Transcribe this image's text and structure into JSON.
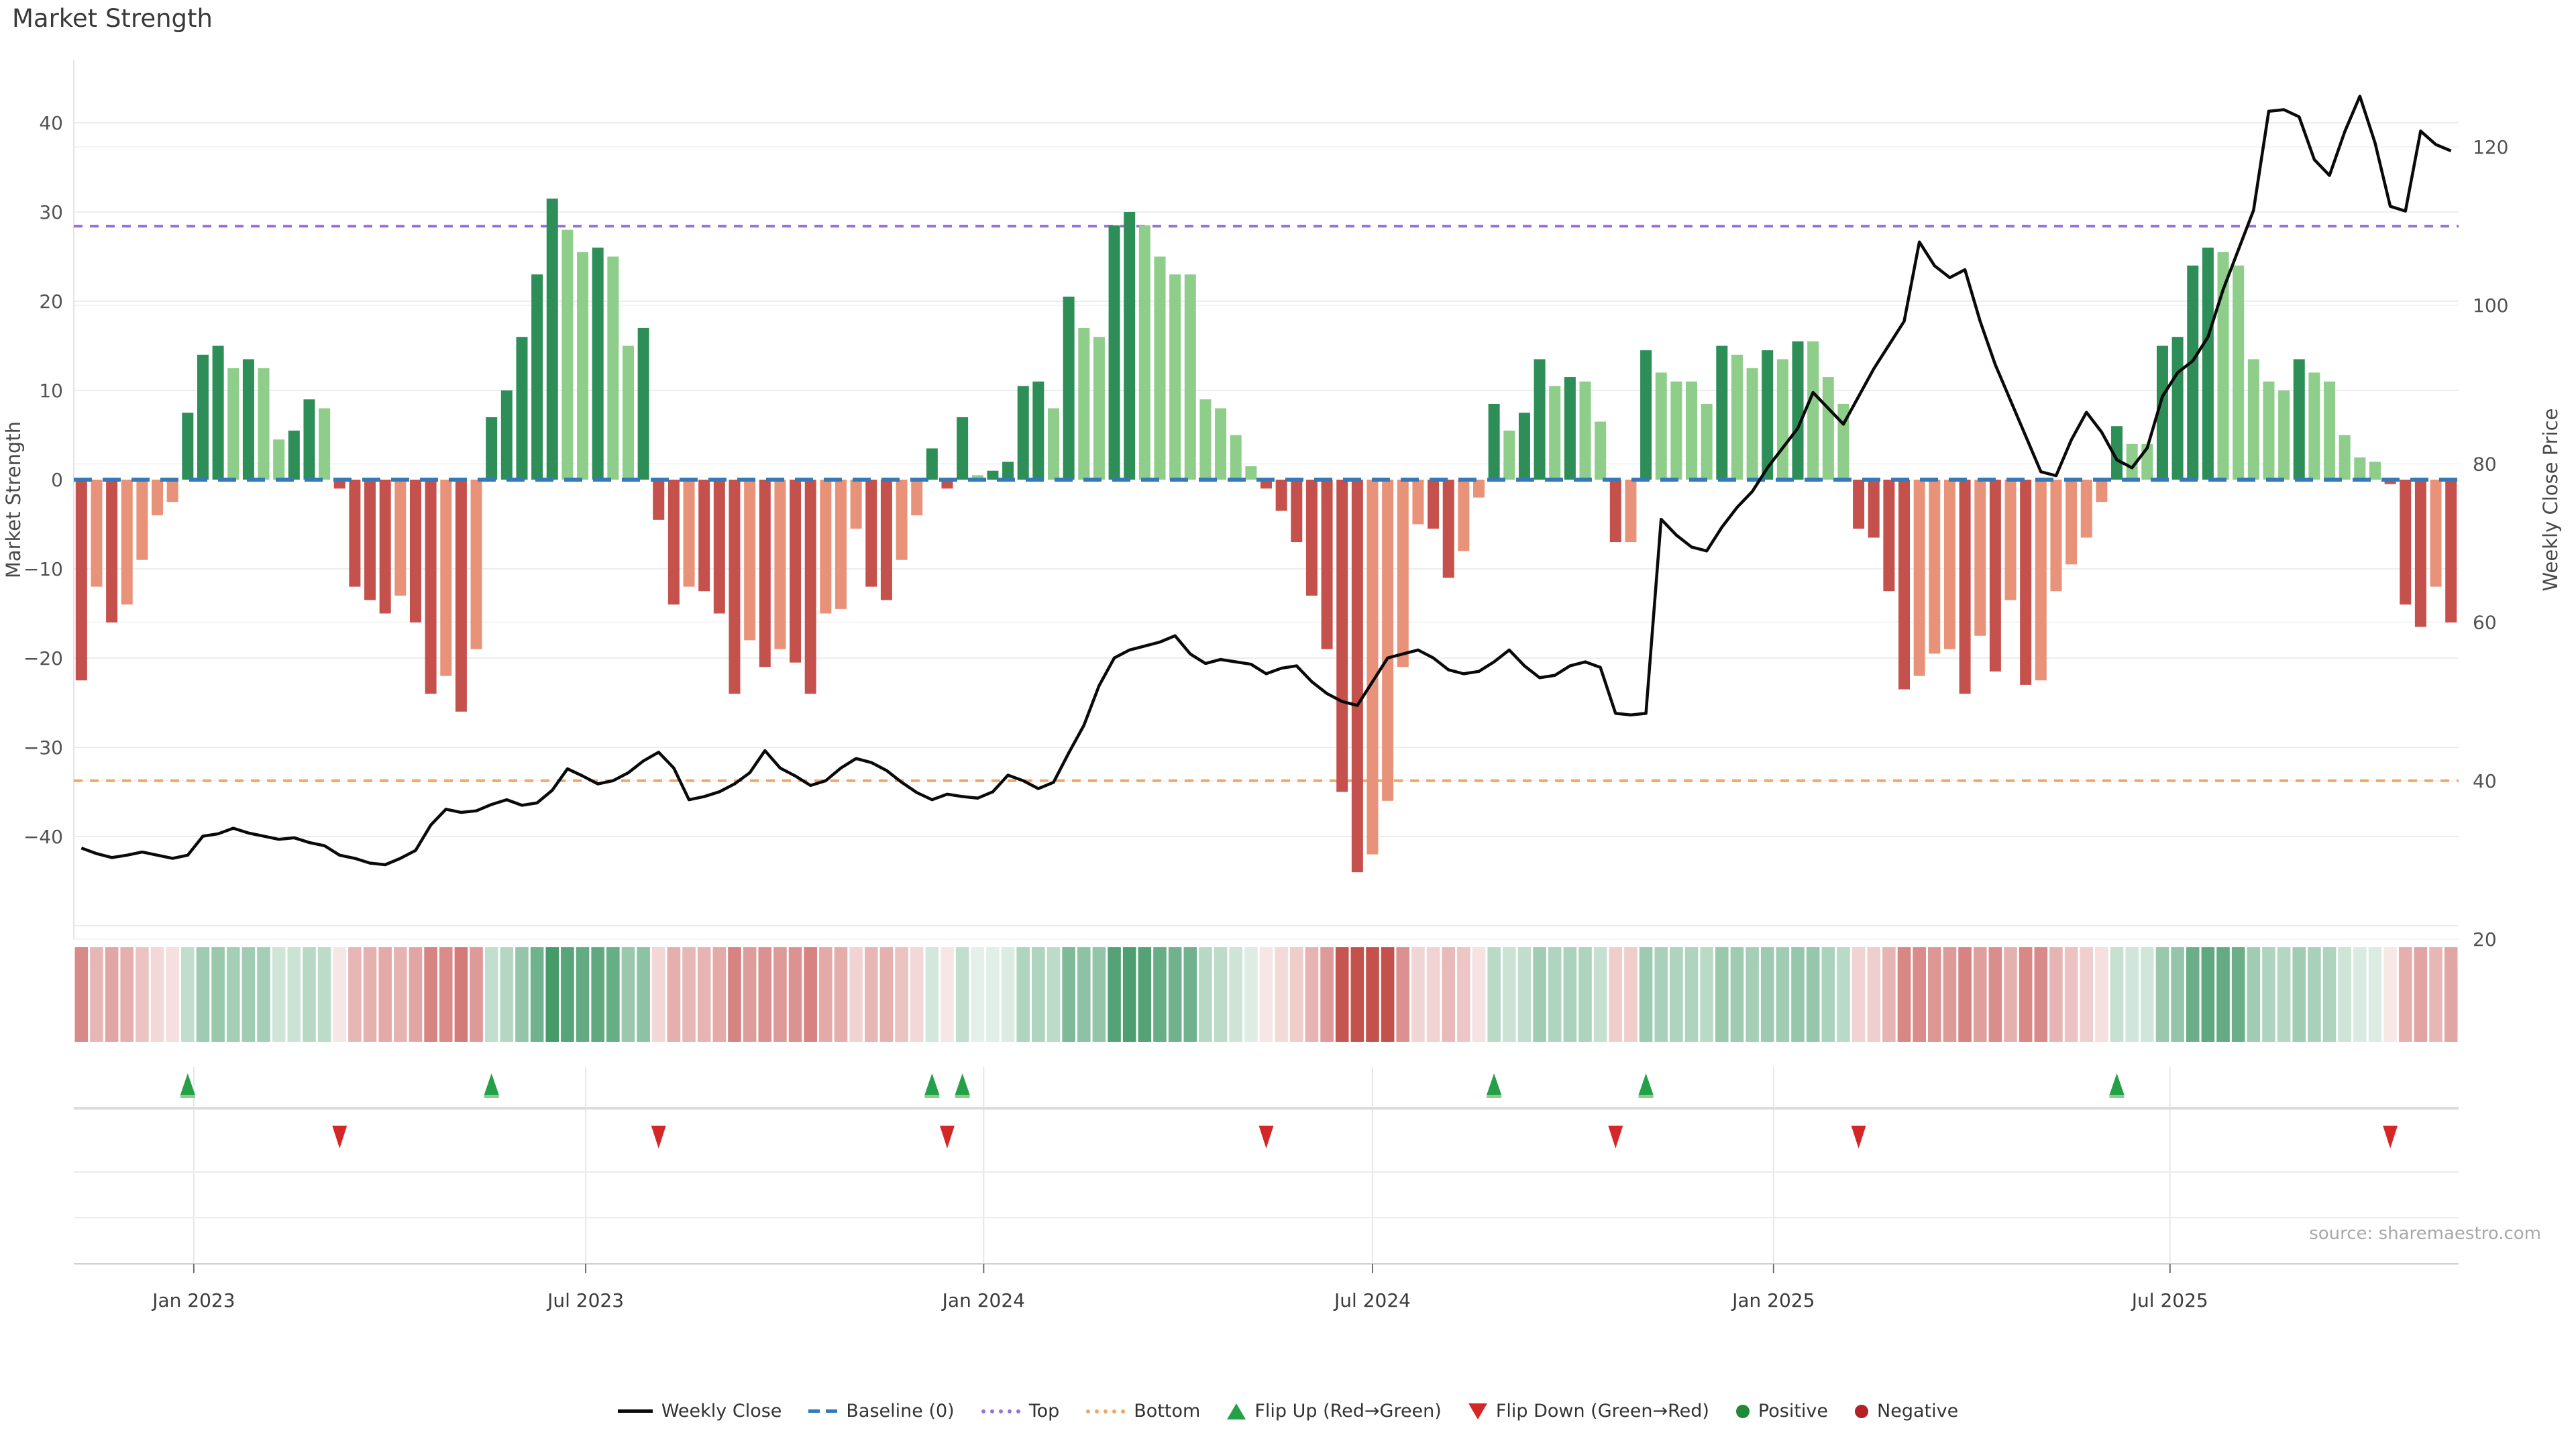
{
  "title": "Market Strength",
  "source_note": "source: sharemaestro.com",
  "axes": {
    "left_label": "Market Strength",
    "right_label": "Weekly Close Price",
    "left_ticks": [
      40,
      30,
      20,
      10,
      0,
      -10,
      -20,
      -30,
      -40
    ],
    "right_ticks": [
      120,
      100,
      80,
      60,
      40,
      20
    ],
    "x_ticks": [
      {
        "label": "Jan 2023",
        "week": 7.9
      },
      {
        "label": "Jul 2023",
        "week": 33.7
      },
      {
        "label": "Jan 2024",
        "week": 59.9
      },
      {
        "label": "Jul 2024",
        "week": 85.5
      },
      {
        "label": "Jan 2025",
        "week": 111.9
      },
      {
        "label": "Jul 2025",
        "week": 138.0
      }
    ]
  },
  "colors": {
    "positive_dark": "#2e8e58",
    "positive_light": "#8ecd8a",
    "negative_dark": "#c5514d",
    "negative_light": "#e89379",
    "baseline_blue": "#3579b8",
    "top_purple": "#9370db",
    "bottom_orange": "#f4a460",
    "close_line": "#0a0a0a",
    "flip_up_green": "#24a148",
    "flip_down_red": "#d62728",
    "positive_dot": "#218739",
    "negative_dot": "#b22227",
    "grid": "#ebedf0"
  },
  "legend": {
    "items": [
      {
        "swatch": "line",
        "label": "Weekly Close"
      },
      {
        "swatch": "dash-blue",
        "label": "Baseline (0)"
      },
      {
        "swatch": "dot-purple",
        "label": "Top"
      },
      {
        "swatch": "dot-orange",
        "label": "Bottom"
      },
      {
        "swatch": "tri-up",
        "label": "Flip Up (Red→Green)"
      },
      {
        "swatch": "tri-down",
        "label": "Flip Down (Green→Red)"
      },
      {
        "swatch": "circle-green",
        "label": "Positive"
      },
      {
        "swatch": "circle-red",
        "label": "Negative"
      }
    ]
  },
  "chart_data": {
    "type": "bar",
    "x_unit": "week",
    "weeks": 157,
    "title": "Market Strength",
    "left_axis_label": "Market Strength",
    "right_axis_label": "Weekly Close Price",
    "left_axis_range": [
      -51.5,
      47
    ],
    "right_axis_range": [
      20,
      131
    ],
    "baseline": 0,
    "top_line_price": 110,
    "bottom_line_price": 40,
    "flip_up_weeks": [
      7,
      27,
      56,
      58,
      93,
      103,
      134
    ],
    "flip_down_weeks": [
      17,
      38,
      57,
      78,
      101,
      117,
      152
    ],
    "heatmap_note": "strip mirrors Market Strength bars: green positive / red negative, opacity scales with magnitude",
    "bar_shade_note": "bar is dark when magnitude grows or sign flips vs previous week, light when fading",
    "series": [
      {
        "name": "Market Strength",
        "type": "bar",
        "axis": "left",
        "values": [
          -22.5,
          -12,
          -16,
          -14,
          -9,
          -4,
          -2.5,
          7.5,
          14,
          15,
          12.5,
          13.5,
          12.5,
          4.5,
          5.5,
          9,
          8,
          -1,
          -12,
          -13.5,
          -15,
          -13,
          -16,
          -24,
          -22,
          -26,
          -19,
          7,
          10,
          16,
          23,
          31.5,
          28,
          25.5,
          26,
          25,
          15,
          17,
          -4.5,
          -14,
          -12,
          -12.5,
          -15,
          -24,
          -18,
          -21,
          -19,
          -20.5,
          -24,
          -15,
          -14.5,
          -5.5,
          -12,
          -13.5,
          -9,
          -4,
          3.5,
          -1,
          7,
          0.5,
          1,
          2,
          10.5,
          11,
          8,
          20.5,
          17,
          16,
          28.5,
          30,
          28.5,
          25,
          23,
          23,
          9,
          8,
          5,
          1.5,
          -1,
          -3.5,
          -7,
          -13,
          -19,
          -35,
          -44,
          -42,
          -36,
          -21,
          -5,
          -5.5,
          -11,
          -8,
          -2,
          8.5,
          5.5,
          7.5,
          13.5,
          10.5,
          11.5,
          11,
          6.5,
          -7,
          -7,
          14.5,
          12,
          11,
          11,
          8.5,
          15,
          14,
          12.5,
          14.5,
          13.5,
          15.5,
          15.5,
          11.5,
          8.5,
          -5.5,
          -6.5,
          -12.5,
          -23.5,
          -22,
          -19.5,
          -19,
          -24,
          -17.5,
          -21.5,
          -13.5,
          -23,
          -22.5,
          -12.5,
          -9.5,
          -6.5,
          -2.5,
          6,
          4,
          4,
          15,
          16,
          24,
          26,
          25.5,
          24,
          13.5,
          11,
          10,
          13.5,
          12,
          11,
          5,
          2.5,
          2,
          -0.5,
          -14,
          -16.5,
          -12,
          -16
        ]
      },
      {
        "name": "Weekly Close",
        "type": "line",
        "axis": "right",
        "values": [
          31.5,
          30.8,
          30.3,
          30.6,
          31.0,
          30.6,
          30.2,
          30.6,
          33.0,
          33.3,
          34.0,
          33.4,
          33.0,
          32.6,
          32.8,
          32.2,
          31.8,
          30.6,
          30.2,
          29.6,
          29.4,
          30.2,
          31.2,
          34.4,
          36.4,
          36.0,
          36.2,
          37.0,
          37.6,
          36.9,
          37.2,
          38.8,
          41.5,
          40.6,
          39.6,
          40.0,
          41.0,
          42.5,
          43.6,
          41.6,
          37.6,
          38.0,
          38.6,
          39.6,
          41.0,
          43.8,
          41.6,
          40.6,
          39.4,
          40.0,
          41.6,
          42.8,
          42.3,
          41.3,
          39.8,
          38.5,
          37.6,
          38.3,
          38.0,
          37.8,
          38.6,
          40.7,
          40.0,
          39.0,
          39.8,
          43.5,
          47.0,
          52.0,
          55.5,
          56.5,
          57.0,
          57.5,
          58.3,
          56.0,
          54.8,
          55.3,
          55.0,
          54.7,
          53.5,
          54.2,
          54.5,
          52.5,
          51.0,
          50.0,
          49.5,
          52.5,
          55.5,
          56.0,
          56.5,
          55.5,
          54.0,
          53.5,
          53.8,
          55.0,
          56.5,
          54.5,
          53.0,
          53.3,
          54.5,
          55.0,
          54.3,
          48.5,
          48.3,
          48.5,
          73.0,
          71.0,
          69.5,
          69.0,
          72.0,
          74.5,
          76.5,
          79.5,
          82.0,
          84.5,
          89.0,
          87.0,
          85.0,
          88.5,
          92.0,
          95.0,
          98.0,
          108.0,
          105.0,
          103.5,
          104.5,
          98.0,
          92.5,
          88.0,
          83.5,
          79.0,
          78.5,
          83.0,
          86.5,
          84.0,
          80.5,
          79.5,
          82.0,
          88.5,
          91.5,
          93.0,
          96.0,
          102.0,
          107.0,
          112.0,
          124.5,
          124.7,
          123.8,
          118.4,
          116.4,
          121.9,
          126.4,
          120.5,
          112.5,
          111.9,
          122.0,
          120.3,
          119.5
        ]
      }
    ]
  }
}
